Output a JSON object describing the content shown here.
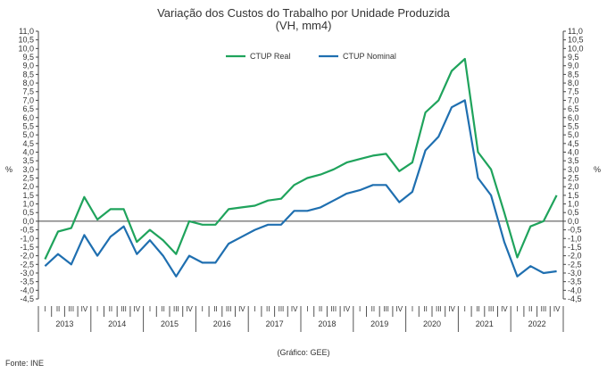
{
  "chart_data": {
    "type": "line",
    "title": "Variação dos Custos do Trabalho por Unidade Produzida",
    "subtitle": "(VH, mm4)",
    "ylabel": "%",
    "ylim": [
      -4.5,
      11.0
    ],
    "yticks": [
      11.0,
      10.5,
      10.0,
      9.5,
      9.0,
      8.5,
      8.0,
      7.5,
      7.0,
      6.5,
      6.0,
      5.5,
      5.0,
      4.5,
      4.0,
      3.5,
      3.0,
      2.5,
      2.0,
      1.5,
      1.0,
      0.5,
      0.0,
      -0.5,
      -1.0,
      -1.5,
      -2.0,
      -2.5,
      -3.0,
      -3.5,
      -4.0,
      -4.5
    ],
    "ytick_labels": [
      "11,0",
      "10,5",
      "10,0",
      "9,5",
      "9,0",
      "8,5",
      "8,0",
      "7,5",
      "7,0",
      "6,5",
      "6,0",
      "5,5",
      "5,0",
      "4,5",
      "4,0",
      "3,5",
      "3,0",
      "2,5",
      "2,0",
      "1,5",
      "1,0",
      "0,5",
      "0,0",
      "-0,5",
      "-1,0",
      "-1,5",
      "-2,0",
      "-2,5",
      "-3,0",
      "-3,5",
      "-4,0",
      "-4,5"
    ],
    "quarters": [
      "I",
      "II",
      "III",
      "IV"
    ],
    "years": [
      "2013",
      "2014",
      "2015",
      "2016",
      "2017",
      "2018",
      "2019",
      "2020",
      "2021",
      "2022"
    ],
    "legend_position": "top-center",
    "grid": false,
    "series": [
      {
        "name": "CTUP Real",
        "color": "#1fa35c",
        "values": [
          -2.2,
          -0.6,
          -0.4,
          1.4,
          0.1,
          0.7,
          0.7,
          -1.2,
          -0.5,
          -1.1,
          -1.9,
          0.0,
          -0.2,
          -0.2,
          0.7,
          0.8,
          0.9,
          1.2,
          1.3,
          2.1,
          2.5,
          2.7,
          3.0,
          3.4,
          3.6,
          3.8,
          3.9,
          2.9,
          3.4,
          6.3,
          7.0,
          8.7,
          9.4,
          4.0,
          3.0,
          0.5,
          -2.1,
          -0.3,
          0.0,
          1.5
        ]
      },
      {
        "name": "CTUP Nominal",
        "color": "#1f6fb0",
        "values": [
          -2.6,
          -1.9,
          -2.5,
          -0.8,
          -2.0,
          -0.9,
          -0.3,
          -1.9,
          -1.1,
          -2.0,
          -3.2,
          -2.0,
          -2.4,
          -2.4,
          -1.3,
          -0.9,
          -0.5,
          -0.2,
          -0.2,
          0.6,
          0.6,
          0.8,
          1.2,
          1.6,
          1.8,
          2.1,
          2.1,
          1.1,
          1.7,
          4.1,
          4.9,
          6.6,
          7.0,
          2.5,
          1.5,
          -1.2,
          -3.2,
          -2.6,
          -3.0,
          -2.9
        ]
      }
    ]
  },
  "credit": "(Gráfico: GEE)",
  "source": "Fonte: INE"
}
